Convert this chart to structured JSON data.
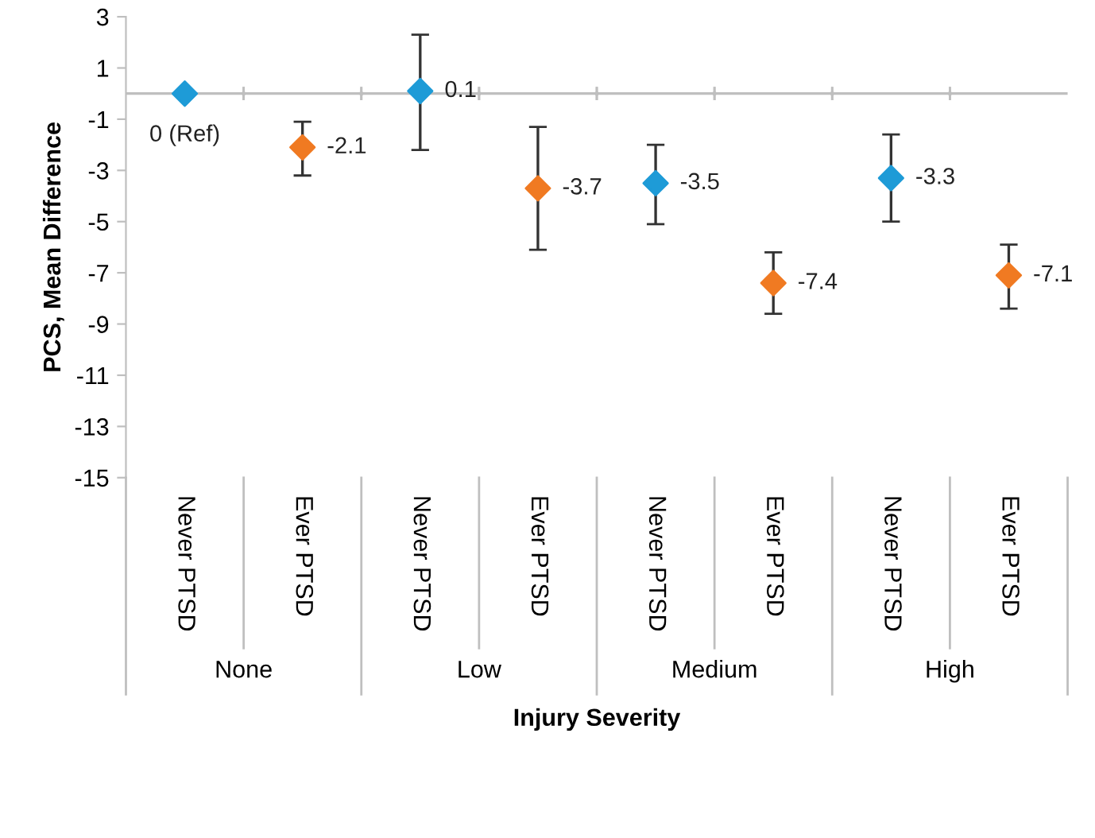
{
  "chart_data": {
    "type": "scatter",
    "xlabel": "Injury Severity",
    "ylabel": "PCS, Mean Difference",
    "categories": [
      "Never PTSD",
      "Ever PTSD",
      "Never PTSD",
      "Ever PTSD",
      "Never PTSD",
      "Ever PTSD",
      "Never PTSD",
      "Ever PTSD"
    ],
    "annotations": [
      "None",
      "Low",
      "Medium",
      "High"
    ],
    "series": [
      {
        "color": "#1e9bd7",
        "values": [
          0,
          null,
          0.1,
          null,
          -3.5,
          null,
          -3.3,
          null
        ],
        "errors": [
          null,
          null,
          [
            -2.2,
            2.3
          ],
          null,
          [
            -5.1,
            -2.0
          ],
          null,
          [
            -5.0,
            -1.6
          ],
          null
        ],
        "value_labels": [
          "0 (Ref)",
          null,
          "0.1",
          null,
          "-3.5",
          null,
          "-3.3",
          null
        ]
      },
      {
        "color": "#f07a22",
        "values": [
          null,
          -2.1,
          null,
          -3.7,
          null,
          -7.4,
          null,
          -7.1
        ],
        "errors": [
          null,
          [
            -3.2,
            -1.1
          ],
          null,
          [
            -6.1,
            -1.3
          ],
          null,
          [
            -8.6,
            -6.2
          ],
          null,
          [
            -8.4,
            -5.9
          ]
        ],
        "value_labels": [
          null,
          "-2.1",
          null,
          "-3.7",
          null,
          "-7.4",
          null,
          "-7.1"
        ]
      }
    ],
    "ref_lines": [
      {
        "axis": "y",
        "value": 0,
        "color": "#bfbfbf"
      }
    ],
    "marker": "diamond",
    "ylim": [
      -15,
      3
    ],
    "yticks": [
      3,
      1,
      -1,
      -3,
      -5,
      -7,
      -9,
      -11,
      -13,
      -15
    ],
    "grid": false,
    "legend": false
  }
}
